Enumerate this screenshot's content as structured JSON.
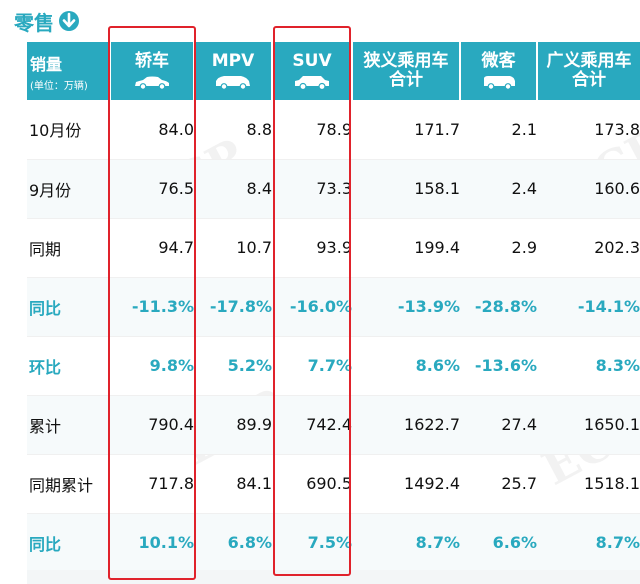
{
  "title": "零售",
  "colors": {
    "accent": "#29a9bf",
    "highlight_frame": "#e0222b"
  },
  "icons": {
    "title": "down-arrow-circle-icon",
    "columns": "car-icon"
  },
  "table": {
    "corner": {
      "label": "销量",
      "unit": "(单位：万辆)"
    },
    "columns": [
      {
        "lines": [
          "轿车"
        ],
        "icon": "sedan-car-icon"
      },
      {
        "lines": [
          "MPV"
        ],
        "icon": "mpv-car-icon"
      },
      {
        "lines": [
          "SUV"
        ],
        "icon": "suv-car-icon"
      },
      {
        "lines": [
          "狭义乘用车",
          "合计"
        ]
      },
      {
        "lines": [
          "微客"
        ],
        "icon": "minivan-icon"
      },
      {
        "lines": [
          "广义乘用车",
          "合计"
        ]
      }
    ],
    "rows": [
      {
        "label": "10月份",
        "values": [
          "84.0",
          "8.8",
          "78.9",
          "171.7",
          "2.1",
          "173.8"
        ],
        "highlight": false
      },
      {
        "label": "9月份",
        "values": [
          "76.5",
          "8.4",
          "73.3",
          "158.1",
          "2.4",
          "160.6"
        ],
        "highlight": false
      },
      {
        "label": "同期",
        "values": [
          "94.7",
          "10.7",
          "93.9",
          "199.4",
          "2.9",
          "202.3"
        ],
        "highlight": false
      },
      {
        "label": "同比",
        "values": [
          "-11.3%",
          "-17.8%",
          "-16.0%",
          "-13.9%",
          "-28.8%",
          "-14.1%"
        ],
        "highlight": true
      },
      {
        "label": "环比",
        "values": [
          "9.8%",
          "5.2%",
          "7.7%",
          "8.6%",
          "-13.6%",
          "8.3%"
        ],
        "highlight": true
      },
      {
        "label": "累计",
        "values": [
          "790.4",
          "89.9",
          "742.4",
          "1622.7",
          "27.4",
          "1650.1"
        ],
        "highlight": false
      },
      {
        "label": "同期累计",
        "values": [
          "717.8",
          "84.1",
          "690.5",
          "1492.4",
          "25.7",
          "1518.1"
        ],
        "highlight": false
      },
      {
        "label": "同比",
        "values": [
          "10.1%",
          "6.8%",
          "7.5%",
          "8.7%",
          "6.6%",
          "8.7%"
        ],
        "highlight": true
      }
    ]
  },
  "highlighted_columns": [
    "轿车",
    "SUV"
  ]
}
